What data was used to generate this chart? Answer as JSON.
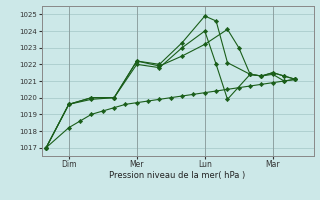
{
  "bg_color": "#cce8e8",
  "grid_color": "#aacccc",
  "line_color": "#1a5e1a",
  "marker_color": "#1a5e1a",
  "xlabel": "Pression niveau de la mer( hPa )",
  "ylim": [
    1016.5,
    1025.5
  ],
  "yticks": [
    1017,
    1018,
    1019,
    1020,
    1021,
    1022,
    1023,
    1024,
    1025
  ],
  "xtick_labels": [
    "Dim",
    "Mer",
    "Lun",
    "Mar"
  ],
  "xtick_positions": [
    1,
    4,
    7,
    10
  ],
  "xlim": [
    -0.2,
    11.8
  ],
  "series_x": [
    [
      0,
      1,
      1.5,
      2,
      2.5,
      3,
      3.5,
      4,
      4.5,
      5,
      5.5,
      6,
      6.5,
      7,
      7.5,
      8,
      8.5,
      9,
      9.5,
      10,
      10.5,
      11
    ],
    [
      0,
      1,
      2,
      3,
      4,
      5,
      6,
      7,
      8,
      8.5,
      9,
      9.5,
      10,
      10.5,
      11
    ],
    [
      0,
      1,
      2,
      3,
      4,
      5,
      6,
      7,
      7.5,
      8,
      9,
      9.5,
      10,
      10.5,
      11
    ],
    [
      0,
      1,
      2,
      3,
      4,
      5,
      6,
      7,
      7.5,
      8,
      9,
      9.5,
      10,
      10.5,
      11
    ]
  ],
  "series_y": [
    [
      1017.0,
      1018.2,
      1018.6,
      1019.0,
      1019.2,
      1019.4,
      1019.6,
      1019.7,
      1019.8,
      1019.9,
      1020.0,
      1020.1,
      1020.2,
      1020.3,
      1020.4,
      1020.5,
      1020.6,
      1020.7,
      1020.8,
      1020.9,
      1021.0,
      1021.1
    ],
    [
      1017.0,
      1019.6,
      1019.9,
      1020.0,
      1022.2,
      1021.9,
      1022.5,
      1023.2,
      1024.1,
      1023.0,
      1021.4,
      1021.3,
      1021.4,
      1021.0,
      1021.1
    ],
    [
      1017.0,
      1019.6,
      1020.0,
      1020.0,
      1022.2,
      1022.0,
      1023.3,
      1024.9,
      1024.6,
      1022.1,
      1021.4,
      1021.3,
      1021.5,
      1021.3,
      1021.1
    ],
    [
      1017.0,
      1019.6,
      1020.0,
      1020.0,
      1022.0,
      1021.8,
      1023.0,
      1024.0,
      1022.0,
      1019.9,
      1021.4,
      1021.3,
      1021.5,
      1021.3,
      1021.1
    ]
  ],
  "figsize": [
    3.2,
    2.0
  ],
  "dpi": 100
}
